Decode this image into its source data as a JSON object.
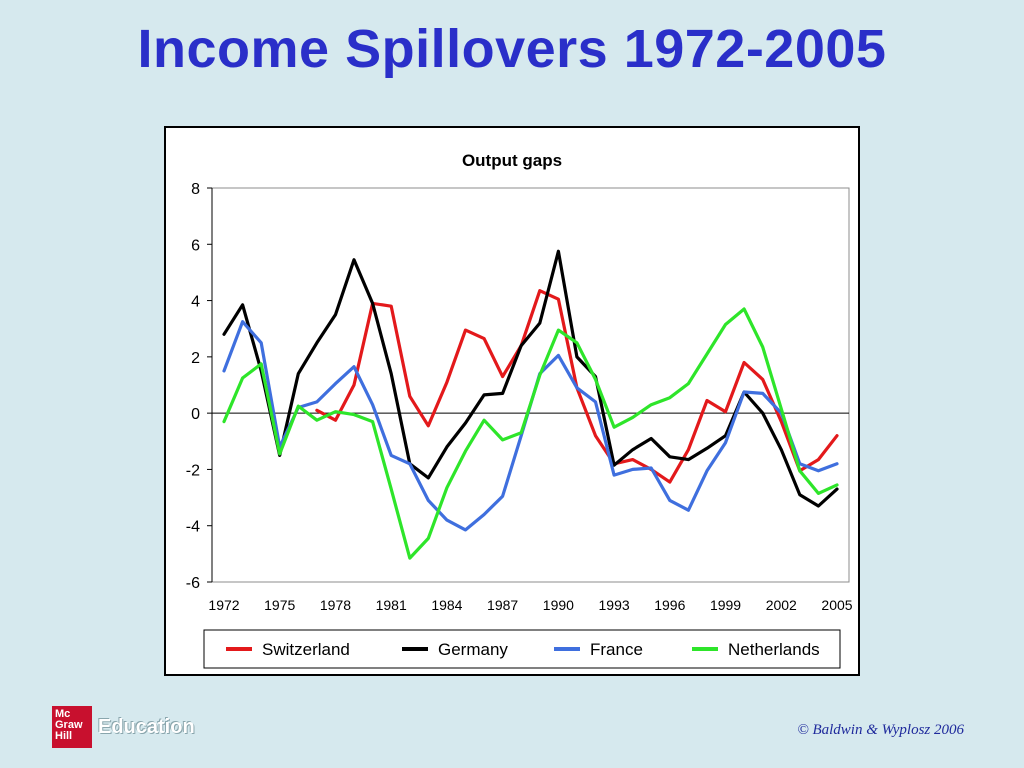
{
  "slide": {
    "title": "Income Spillovers 1972-2005",
    "copyright": "© Baldwin & Wyplosz 2006",
    "logo": {
      "box_lines": [
        "Mc",
        "Graw",
        "Hill"
      ],
      "text": "Education"
    }
  },
  "chart_data": {
    "type": "line",
    "title": "Output gaps",
    "xlabel": "",
    "ylabel": "",
    "ylim": [
      -6,
      8
    ],
    "yticks": [
      -6,
      -4,
      -2,
      0,
      2,
      4,
      6,
      8
    ],
    "xlim": [
      1972,
      2005
    ],
    "xticks": [
      1972,
      1975,
      1978,
      1981,
      1984,
      1987,
      1990,
      1993,
      1996,
      1999,
      2002,
      2005
    ],
    "grid": false,
    "legend_position": "bottom",
    "x": [
      1972,
      1973,
      1974,
      1975,
      1976,
      1977,
      1978,
      1979,
      1980,
      1981,
      1982,
      1983,
      1984,
      1985,
      1986,
      1987,
      1988,
      1989,
      1990,
      1991,
      1992,
      1993,
      1994,
      1995,
      1996,
      1997,
      1998,
      1999,
      2000,
      2001,
      2002,
      2003,
      2004,
      2005
    ],
    "series": [
      {
        "name": "Switzerland",
        "color": "#e3191b",
        "values": [
          null,
          null,
          null,
          null,
          null,
          0.1,
          -0.25,
          1.0,
          3.9,
          3.8,
          0.6,
          -0.45,
          1.1,
          2.95,
          2.65,
          1.3,
          2.4,
          4.35,
          4.05,
          0.9,
          -0.8,
          -1.8,
          -1.65,
          -2.0,
          -2.45,
          -1.3,
          0.45,
          0.05,
          1.8,
          1.2,
          -0.3,
          -2.05,
          -1.65,
          -0.8
        ]
      },
      {
        "name": "Germany",
        "color": "#000000",
        "values": [
          2.8,
          3.85,
          1.5,
          -1.5,
          1.4,
          2.5,
          3.5,
          5.45,
          3.9,
          1.4,
          -1.8,
          -2.3,
          -1.2,
          -0.35,
          0.65,
          0.7,
          2.4,
          3.2,
          5.75,
          2.0,
          1.3,
          -1.85,
          -1.3,
          -0.9,
          -1.55,
          -1.65,
          -1.25,
          -0.8,
          0.75,
          0.0,
          -1.3,
          -2.9,
          -3.3,
          -2.7
        ]
      },
      {
        "name": "France",
        "color": "#3f6fde",
        "values": [
          1.5,
          3.25,
          2.5,
          -1.2,
          0.2,
          0.4,
          1.05,
          1.65,
          0.3,
          -1.5,
          -1.8,
          -3.1,
          -3.8,
          -4.15,
          -3.6,
          -2.95,
          -0.8,
          1.4,
          2.05,
          0.9,
          0.4,
          -2.2,
          -2.0,
          -1.95,
          -3.1,
          -3.45,
          -2.05,
          -1.05,
          0.75,
          0.7,
          0.0,
          -1.8,
          -2.05,
          -1.8
        ]
      },
      {
        "name": "Netherlands",
        "color": "#2ee52a",
        "values": [
          -0.3,
          1.25,
          1.75,
          -1.45,
          0.25,
          -0.25,
          0.05,
          -0.05,
          -0.3,
          -2.7,
          -5.15,
          -4.45,
          -2.65,
          -1.35,
          -0.25,
          -0.95,
          -0.7,
          1.35,
          2.95,
          2.5,
          1.2,
          -0.5,
          -0.15,
          0.3,
          0.55,
          1.05,
          2.1,
          3.15,
          3.7,
          2.35,
          0.15,
          -2.05,
          -2.85,
          -2.55
        ]
      }
    ]
  }
}
